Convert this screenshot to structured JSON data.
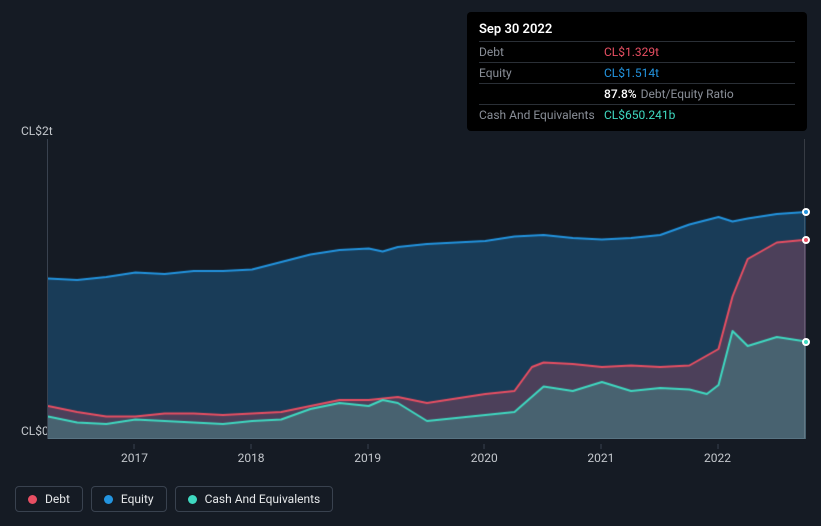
{
  "tooltip": {
    "date": "Sep 30 2022",
    "rows": [
      {
        "label": "Debt",
        "value": "CL$1.329t",
        "color": "#e84f63"
      },
      {
        "label": "Equity",
        "value": "CL$1.514t",
        "color": "#2394df"
      },
      {
        "label": "",
        "value_pct": "87.8%",
        "value_label": "Debt/Equity Ratio"
      },
      {
        "label": "Cash And Equivalents",
        "value": "CL$650.241b",
        "color": "#3fd9c1"
      }
    ]
  },
  "chart": {
    "type": "area",
    "background": "#151b24",
    "grid_color": "#39424f",
    "y_max": 2.0,
    "y_labels": [
      {
        "v": 2.0,
        "text": "CL$2t"
      },
      {
        "v": 0.0,
        "text": "CL$0"
      }
    ],
    "x_min": 2016.25,
    "x_max": 2022.75,
    "x_ticks": [
      2017,
      2018,
      2019,
      2020,
      2021,
      2022
    ],
    "series": [
      {
        "name": "Equity",
        "color": "#2394df",
        "fill": "rgba(35,148,223,0.28)",
        "line_width": 2,
        "has_endpoint": true,
        "points": [
          [
            2016.25,
            1.07
          ],
          [
            2016.5,
            1.06
          ],
          [
            2016.75,
            1.08
          ],
          [
            2017.0,
            1.11
          ],
          [
            2017.25,
            1.1
          ],
          [
            2017.5,
            1.12
          ],
          [
            2017.75,
            1.12
          ],
          [
            2018.0,
            1.13
          ],
          [
            2018.25,
            1.18
          ],
          [
            2018.5,
            1.23
          ],
          [
            2018.75,
            1.26
          ],
          [
            2019.0,
            1.27
          ],
          [
            2019.12,
            1.25
          ],
          [
            2019.25,
            1.28
          ],
          [
            2019.5,
            1.3
          ],
          [
            2019.75,
            1.31
          ],
          [
            2020.0,
            1.32
          ],
          [
            2020.25,
            1.35
          ],
          [
            2020.5,
            1.36
          ],
          [
            2020.75,
            1.34
          ],
          [
            2021.0,
            1.33
          ],
          [
            2021.25,
            1.34
          ],
          [
            2021.5,
            1.36
          ],
          [
            2021.75,
            1.43
          ],
          [
            2022.0,
            1.48
          ],
          [
            2022.12,
            1.45
          ],
          [
            2022.25,
            1.47
          ],
          [
            2022.5,
            1.5
          ],
          [
            2022.75,
            1.514
          ]
        ]
      },
      {
        "name": "Debt",
        "color": "#e84f63",
        "fill": "rgba(232,79,99,0.25)",
        "line_width": 2,
        "has_endpoint": true,
        "points": [
          [
            2016.25,
            0.22
          ],
          [
            2016.5,
            0.18
          ],
          [
            2016.75,
            0.15
          ],
          [
            2017.0,
            0.15
          ],
          [
            2017.25,
            0.17
          ],
          [
            2017.5,
            0.17
          ],
          [
            2017.75,
            0.16
          ],
          [
            2018.0,
            0.17
          ],
          [
            2018.25,
            0.18
          ],
          [
            2018.5,
            0.22
          ],
          [
            2018.75,
            0.26
          ],
          [
            2019.0,
            0.26
          ],
          [
            2019.25,
            0.28
          ],
          [
            2019.5,
            0.24
          ],
          [
            2019.75,
            0.27
          ],
          [
            2020.0,
            0.3
          ],
          [
            2020.25,
            0.32
          ],
          [
            2020.4,
            0.48
          ],
          [
            2020.5,
            0.51
          ],
          [
            2020.75,
            0.5
          ],
          [
            2021.0,
            0.48
          ],
          [
            2021.25,
            0.49
          ],
          [
            2021.5,
            0.48
          ],
          [
            2021.75,
            0.49
          ],
          [
            2022.0,
            0.6
          ],
          [
            2022.12,
            0.95
          ],
          [
            2022.25,
            1.2
          ],
          [
            2022.5,
            1.31
          ],
          [
            2022.75,
            1.329
          ]
        ]
      },
      {
        "name": "Cash And Equivalents",
        "color": "#3fd9c1",
        "fill": "rgba(63,217,193,0.22)",
        "line_width": 2,
        "has_endpoint": true,
        "points": [
          [
            2016.25,
            0.15
          ],
          [
            2016.5,
            0.11
          ],
          [
            2016.75,
            0.1
          ],
          [
            2017.0,
            0.13
          ],
          [
            2017.25,
            0.12
          ],
          [
            2017.5,
            0.11
          ],
          [
            2017.75,
            0.1
          ],
          [
            2018.0,
            0.12
          ],
          [
            2018.25,
            0.13
          ],
          [
            2018.5,
            0.2
          ],
          [
            2018.75,
            0.24
          ],
          [
            2019.0,
            0.22
          ],
          [
            2019.12,
            0.26
          ],
          [
            2019.25,
            0.24
          ],
          [
            2019.5,
            0.12
          ],
          [
            2019.75,
            0.14
          ],
          [
            2020.0,
            0.16
          ],
          [
            2020.25,
            0.18
          ],
          [
            2020.5,
            0.35
          ],
          [
            2020.75,
            0.32
          ],
          [
            2021.0,
            0.38
          ],
          [
            2021.25,
            0.32
          ],
          [
            2021.5,
            0.34
          ],
          [
            2021.75,
            0.33
          ],
          [
            2021.9,
            0.3
          ],
          [
            2022.0,
            0.36
          ],
          [
            2022.12,
            0.72
          ],
          [
            2022.25,
            0.62
          ],
          [
            2022.5,
            0.68
          ],
          [
            2022.75,
            0.65
          ]
        ]
      }
    ]
  },
  "legend": [
    {
      "label": "Debt",
      "color": "#e84f63"
    },
    {
      "label": "Equity",
      "color": "#2394df"
    },
    {
      "label": "Cash And Equivalents",
      "color": "#3fd9c1"
    }
  ]
}
